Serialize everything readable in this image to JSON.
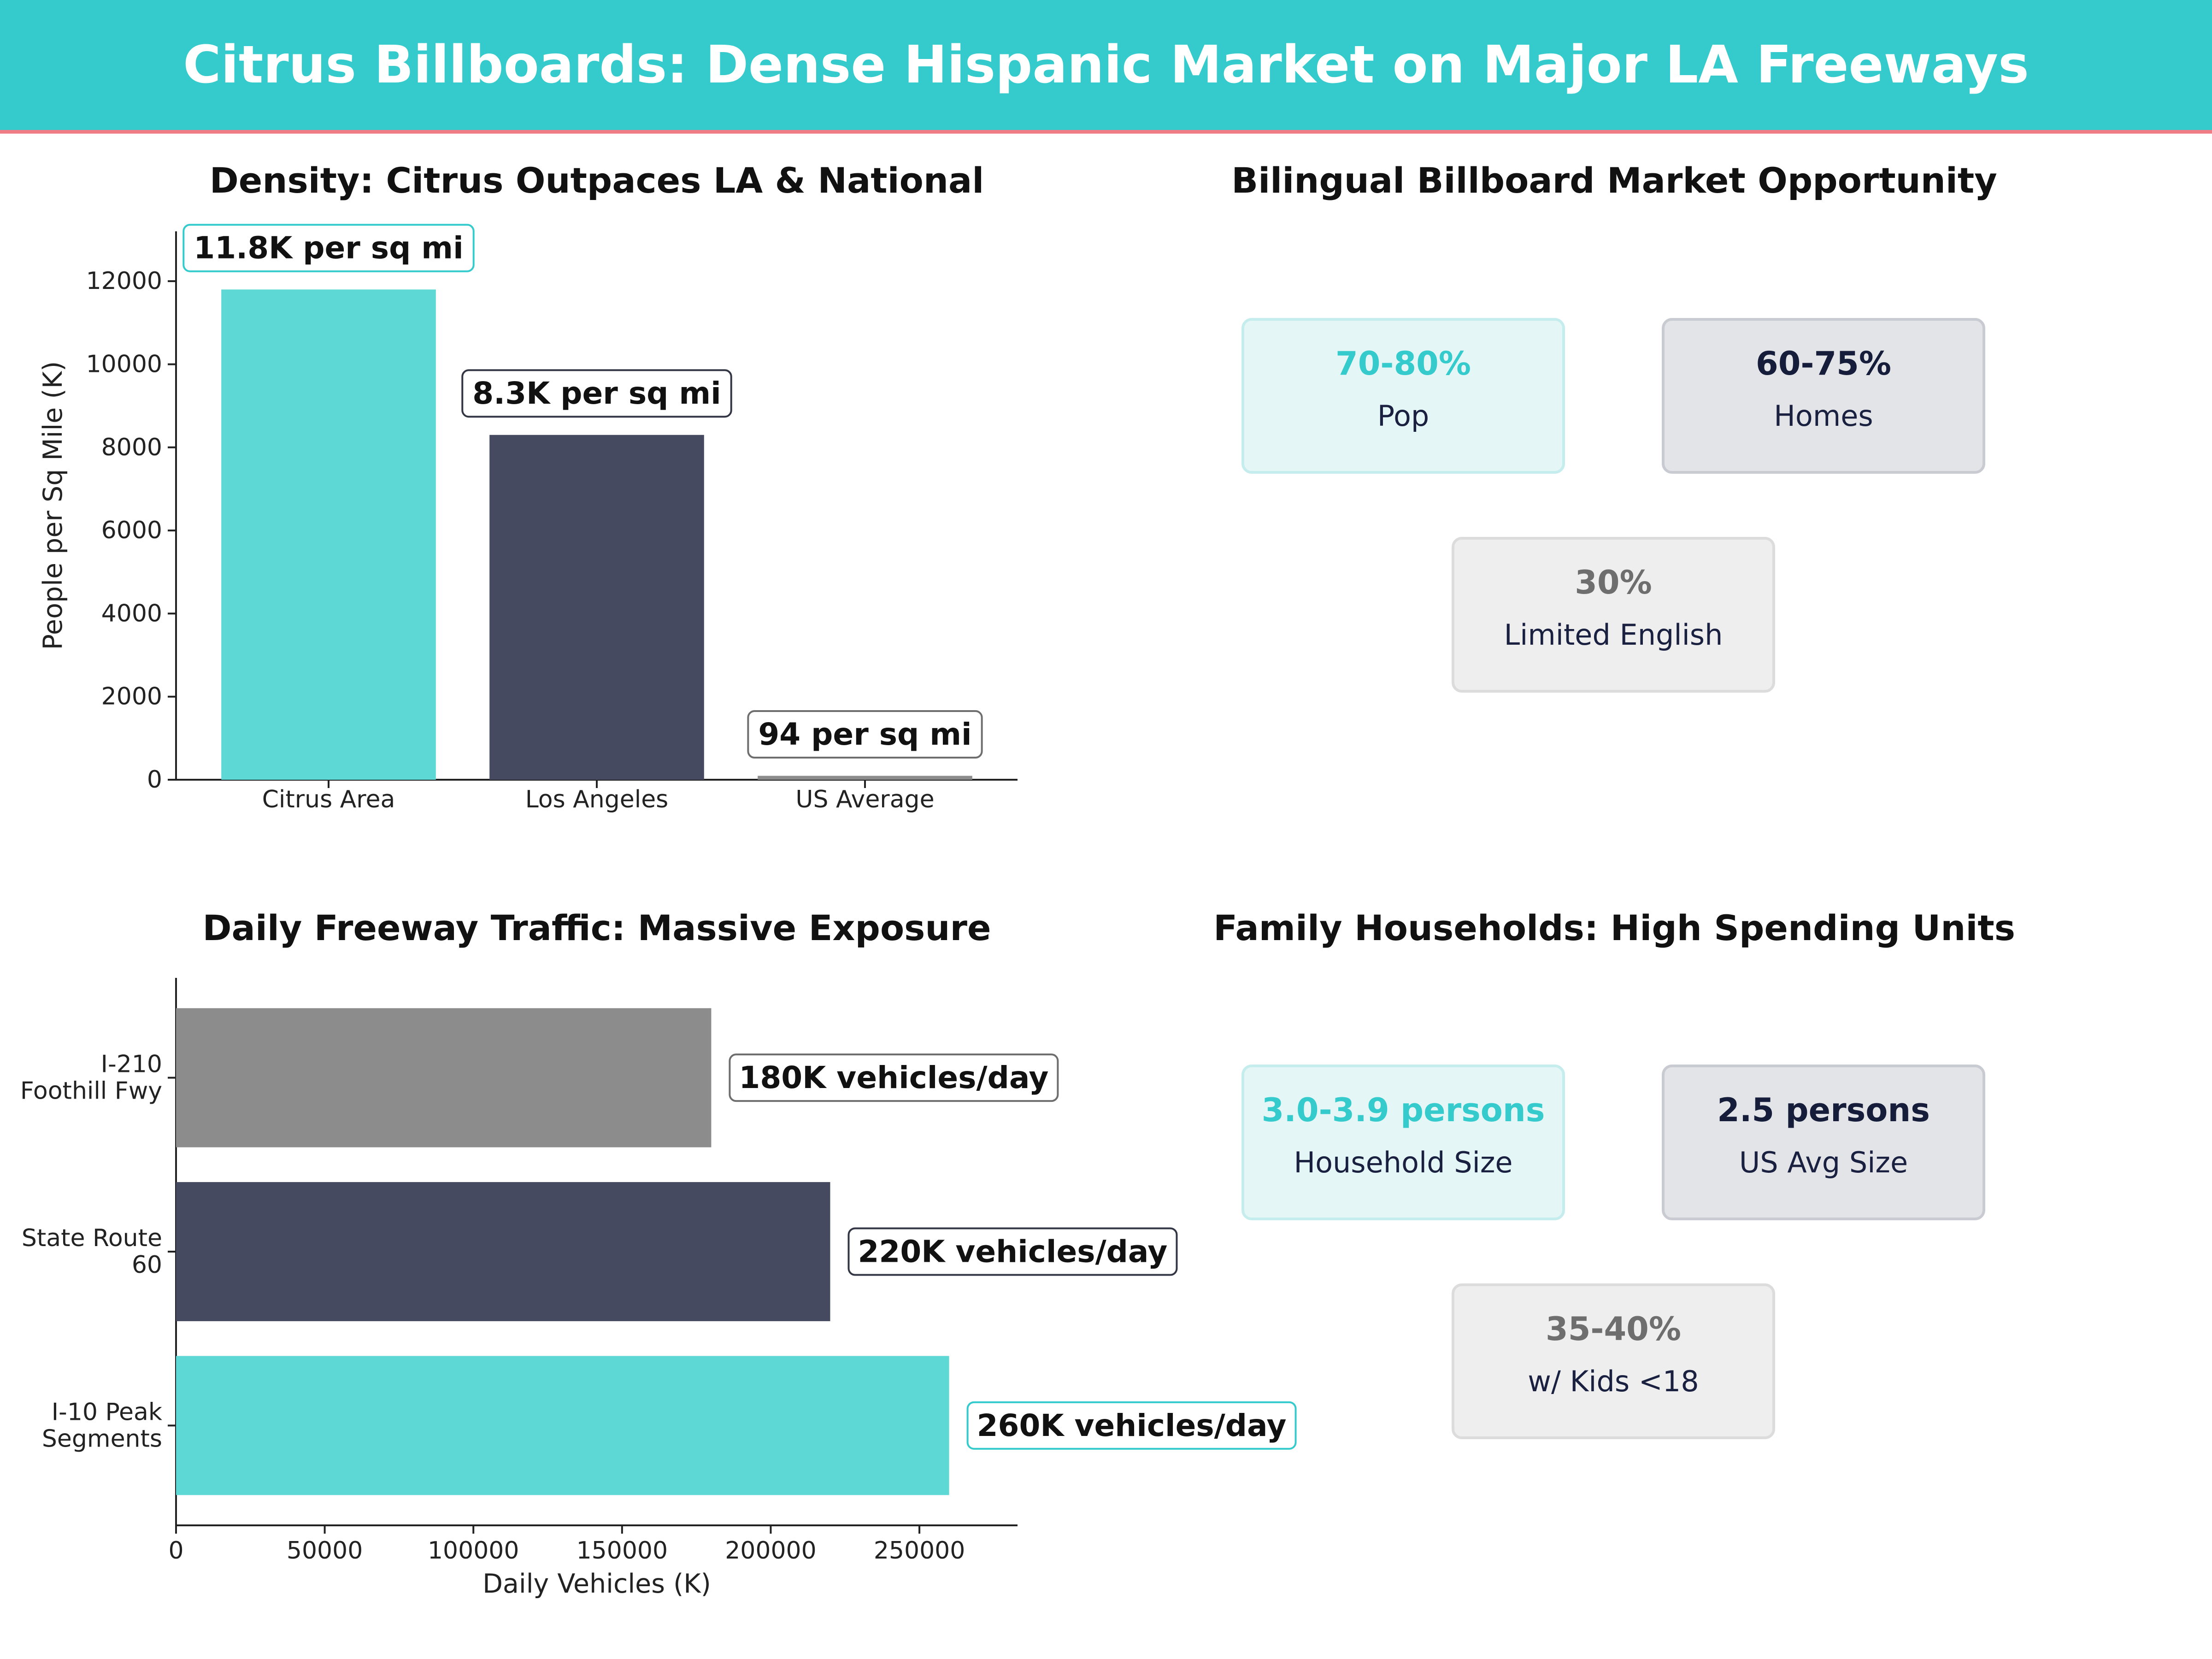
{
  "header": {
    "title": "Citrus Billboards: Dense Hispanic Market on Major LA Freeways"
  },
  "colors": {
    "teal": "#5dd8d5",
    "navy": "#464a60",
    "gray": "#8c8c8c",
    "banner": "#35cbcd",
    "accent_line": "#f07c85"
  },
  "chart_data": [
    {
      "type": "bar",
      "title": "Density: Citrus Outpaces LA & National",
      "categories": [
        "Citrus Area",
        "Los Angeles",
        "US Average"
      ],
      "values": [
        11800,
        8300,
        94
      ],
      "value_labels": [
        "11.8K per sq mi",
        "8.3K per sq mi",
        "94 per sq mi"
      ],
      "bar_colors": [
        "teal",
        "navy",
        "gray"
      ],
      "ylabel": "People per Sq Mile (K)",
      "xlabel": "",
      "ylim": [
        0,
        13200
      ],
      "yticks": [
        0,
        2000,
        4000,
        6000,
        8000,
        10000,
        12000
      ]
    },
    {
      "type": "bar",
      "orientation": "horizontal",
      "title": "Daily Freeway Traffic: Massive Exposure",
      "categories": [
        [
          "I-210",
          "Foothill Fwy"
        ],
        [
          "State Route",
          "60"
        ],
        [
          "I-10 Peak",
          "Segments"
        ]
      ],
      "values": [
        180000,
        220000,
        260000
      ],
      "value_labels": [
        "180K vehicles/day",
        "220K vehicles/day",
        "260K vehicles/day"
      ],
      "bar_colors": [
        "gray",
        "navy",
        "teal"
      ],
      "xlabel": "Daily Vehicles (K)",
      "ylabel": "",
      "xlim": [
        0,
        283000
      ],
      "xticks": [
        0,
        50000,
        100000,
        150000,
        200000,
        250000
      ]
    }
  ],
  "bilingual": {
    "title": "Bilingual Billboard Market Opportunity",
    "cards": [
      {
        "value": "70-80%",
        "label": "Pop"
      },
      {
        "value": "60-75%",
        "label": "Homes"
      },
      {
        "value": "30%",
        "label": "Limited English"
      }
    ]
  },
  "family": {
    "title": "Family Households: High Spending Units",
    "cards": [
      {
        "value": "3.0-3.9 persons",
        "label": "Household Size"
      },
      {
        "value": "2.5 persons",
        "label": "US Avg Size"
      },
      {
        "value": "35-40%",
        "label": "w/ Kids <18"
      }
    ]
  }
}
